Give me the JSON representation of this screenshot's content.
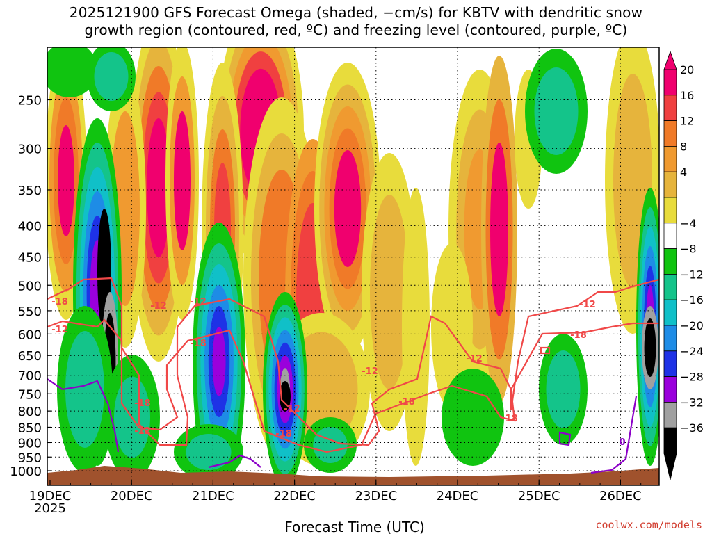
{
  "title": {
    "line1": "2025121900 GFS Forecast Omega (shaded, −cm/s) for KBTV with dendritic snow",
    "line2": "growth region (contoured, red, ºC) and freezing level (contoured, purple, ºC)"
  },
  "credit": "coolwx.com/models",
  "chart_data": {
    "type": "heatmap",
    "title": "2025121900 GFS Forecast Omega (shaded, −cm/s) for KBTV with dendritic snow growth region (contoured, red, ºC) and freezing level (contoured, purple, ºC)",
    "xlabel": "Forecast Time (UTC)",
    "ylabel": "",
    "x_ticks": [
      "19DEC",
      "20DEC",
      "21DEC",
      "22DEC",
      "23DEC",
      "24DEC",
      "25DEC",
      "26DEC"
    ],
    "x_year_label": "2025",
    "y_ticks": [
      250,
      300,
      350,
      400,
      450,
      500,
      550,
      600,
      650,
      700,
      750,
      800,
      850,
      900,
      950,
      1000
    ],
    "y_axis_log_pressure": true,
    "grid": "dotted",
    "colorbar": {
      "labels": [
        "20",
        "16",
        "12",
        "8",
        "4",
        "−4",
        "−8",
        "−12",
        "−16",
        "−20",
        "−24",
        "−28",
        "−32",
        "−36"
      ],
      "colors": [
        "#f0006e",
        "#f04040",
        "#f07a28",
        "#f09a30",
        "#e6b43c",
        "#e8dc3c",
        "#ffffff",
        "#10c410",
        "#14c48a",
        "#10c0c8",
        "#1e8ce6",
        "#1e32e6",
        "#9a00dc",
        "#a0a0a0",
        "#000000"
      ],
      "extend": "both"
    },
    "contours": {
      "dendritic_labels": [
        "-18",
        "-12",
        "-18",
        "-12",
        "-12",
        "-18",
        "-12",
        "-18",
        "-12",
        "-18",
        "-12",
        "-18",
        "-12",
        "-18",
        "-12"
      ],
      "freezing_label": "0"
    }
  }
}
